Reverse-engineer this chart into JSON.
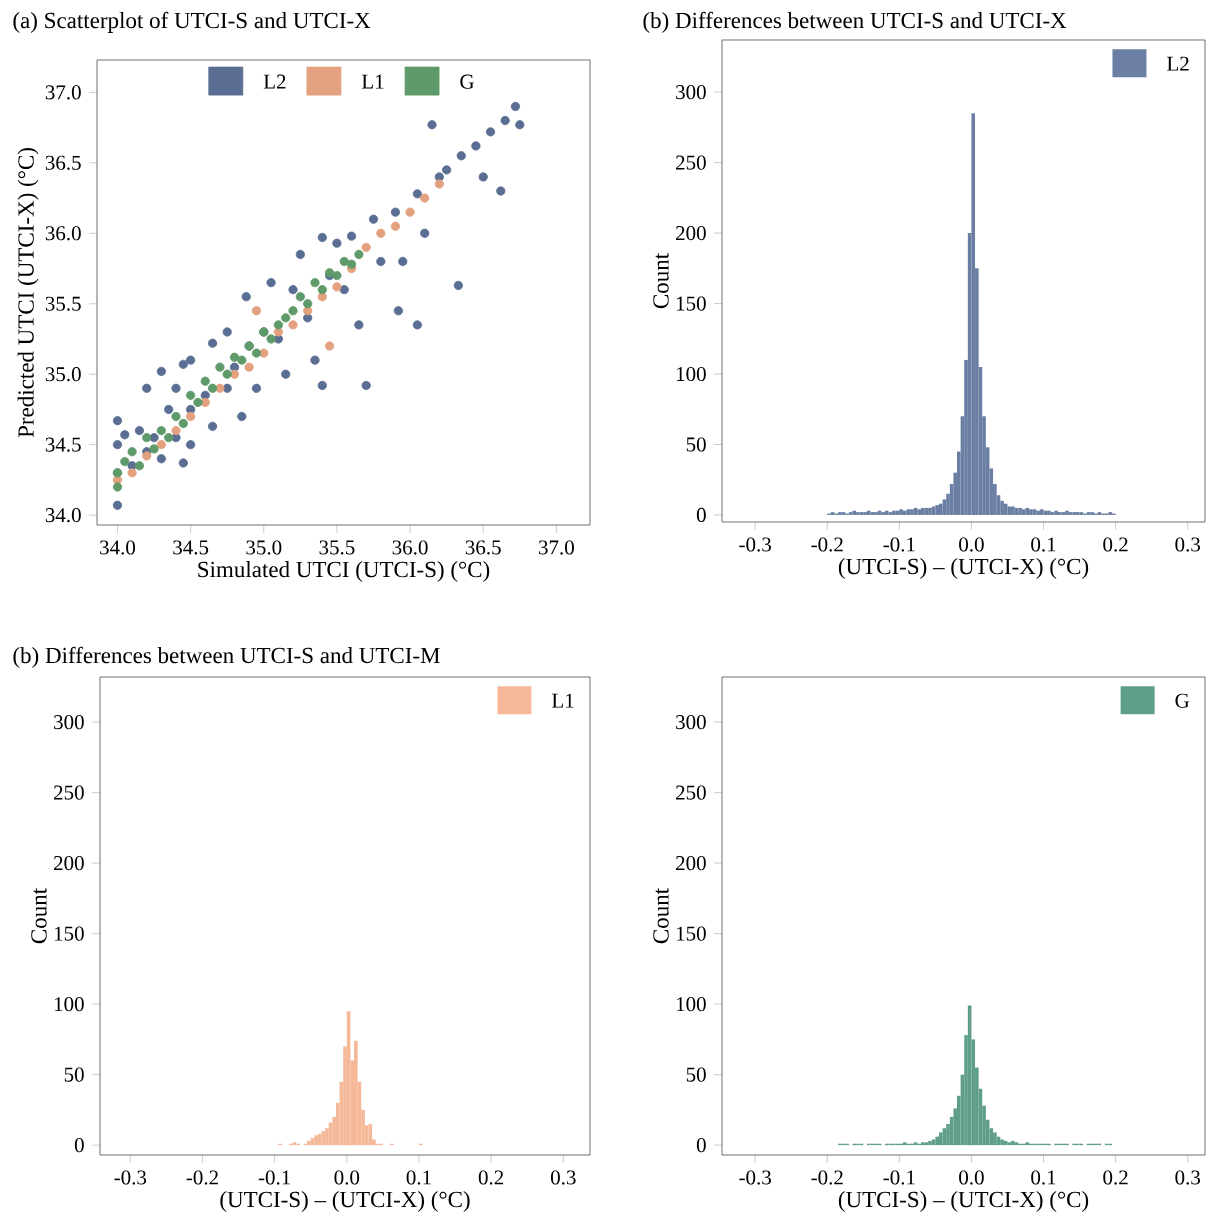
{
  "chart_data": [
    {
      "type": "scatter",
      "title": "(a) Scatterplot of UTCI-S and UTCI-X",
      "xlabel": "Simulated UTCI (UTCI-S) (°C)",
      "ylabel": "Predicted UTCI (UTCI-X) (°C)",
      "marker": "circle",
      "legend": "top",
      "xlim": [
        33.86,
        37.23
      ],
      "ylim": [
        33.93,
        37.23
      ],
      "xticks": [
        {
          "value": 34,
          "label": "34.0"
        },
        {
          "value": 34.5,
          "label": "34.5"
        },
        {
          "value": 35,
          "label": "35.0"
        },
        {
          "value": 35.5,
          "label": "35.5"
        },
        {
          "value": 36,
          "label": "36.0"
        },
        {
          "value": 36.5,
          "label": "36.5"
        },
        {
          "value": 37,
          "label": "37.0"
        }
      ],
      "yticks": [
        {
          "value": 34,
          "label": "34.0"
        },
        {
          "value": 34.5,
          "label": "34.5"
        },
        {
          "value": 35,
          "label": "35.0"
        },
        {
          "value": 35.5,
          "label": "35.5"
        },
        {
          "value": 36,
          "label": "36.0"
        },
        {
          "value": 36.5,
          "label": "36.5"
        },
        {
          "value": 37,
          "label": "37.0"
        }
      ],
      "series": [
        {
          "name": "L2",
          "color": "#5a6d92",
          "x": [
            34.0,
            34.0,
            34.0,
            34.0,
            34.05,
            34.1,
            34.15,
            34.2,
            34.2,
            34.25,
            34.3,
            34.3,
            34.35,
            34.4,
            34.4,
            34.45,
            34.45,
            34.5,
            34.5,
            34.5,
            34.6,
            34.65,
            34.65,
            34.75,
            34.75,
            34.8,
            34.85,
            34.88,
            34.9,
            34.95,
            35.0,
            35.05,
            35.1,
            35.15,
            35.2,
            35.25,
            35.3,
            35.35,
            35.4,
            35.4,
            35.45,
            35.5,
            35.55,
            35.6,
            35.65,
            35.7,
            35.75,
            35.8,
            35.9,
            35.92,
            35.95,
            36.05,
            36.05,
            36.1,
            36.15,
            36.2,
            36.25,
            36.33,
            36.35,
            36.45,
            36.5,
            36.55,
            36.62,
            36.65,
            36.72,
            36.75
          ],
          "values": [
            34.07,
            34.3,
            34.5,
            34.67,
            34.57,
            34.35,
            34.6,
            34.45,
            34.9,
            34.55,
            35.02,
            34.4,
            34.75,
            34.9,
            34.55,
            35.07,
            34.37,
            34.75,
            35.1,
            34.5,
            34.85,
            35.22,
            34.63,
            35.3,
            34.9,
            35.05,
            34.7,
            35.55,
            35.2,
            34.9,
            35.3,
            35.65,
            35.25,
            35.0,
            35.6,
            35.85,
            35.4,
            35.1,
            35.97,
            34.92,
            35.7,
            35.93,
            35.6,
            35.98,
            35.35,
            34.92,
            36.1,
            35.8,
            36.15,
            35.45,
            35.8,
            36.28,
            35.35,
            36.0,
            36.77,
            36.4,
            36.45,
            35.63,
            36.55,
            36.62,
            36.4,
            36.72,
            36.3,
            36.8,
            36.9,
            36.77
          ]
        },
        {
          "name": "L1",
          "color": "#e3a17f",
          "x": [
            34.0,
            34.1,
            34.2,
            34.3,
            34.4,
            34.5,
            34.6,
            34.7,
            34.8,
            34.9,
            35.0,
            35.1,
            35.2,
            35.3,
            35.4,
            35.5,
            35.6,
            35.7,
            35.8,
            35.9,
            36.0,
            36.1,
            36.2,
            35.45,
            34.95
          ],
          "values": [
            34.25,
            34.3,
            34.42,
            34.5,
            34.6,
            34.7,
            34.8,
            34.9,
            35.0,
            35.05,
            35.15,
            35.3,
            35.35,
            35.45,
            35.55,
            35.62,
            35.75,
            35.9,
            36.0,
            36.05,
            36.15,
            36.25,
            36.35,
            35.2,
            35.45
          ]
        },
        {
          "name": "G",
          "color": "#5f9a6a",
          "x": [
            34.0,
            34.0,
            34.05,
            34.1,
            34.15,
            34.2,
            34.25,
            34.3,
            34.35,
            34.4,
            34.45,
            34.5,
            34.55,
            34.6,
            34.65,
            34.7,
            34.75,
            34.8,
            34.85,
            34.9,
            34.95,
            35.0,
            35.05,
            35.1,
            35.15,
            35.2,
            35.25,
            35.3,
            35.35,
            35.4,
            35.45,
            35.5,
            35.55,
            35.6,
            35.65
          ],
          "values": [
            34.2,
            34.3,
            34.38,
            34.45,
            34.35,
            34.55,
            34.47,
            34.6,
            34.55,
            34.7,
            34.65,
            34.85,
            34.8,
            34.95,
            34.9,
            35.05,
            35.0,
            35.12,
            35.1,
            35.2,
            35.15,
            35.3,
            35.25,
            35.35,
            35.4,
            35.45,
            35.55,
            35.5,
            35.65,
            35.6,
            35.72,
            35.7,
            35.8,
            35.78,
            35.85
          ]
        }
      ]
    },
    {
      "type": "histogram",
      "title": "(b) Differences between UTCI-S and UTCI-X",
      "xlabel": "(UTCI-S) – (UTCI-X) (°C)",
      "ylabel": "Count",
      "legend": "top right",
      "xlim": [
        -0.346,
        0.324
      ],
      "ylim": [
        -5,
        337
      ],
      "xticks": [
        {
          "value": -0.3,
          "label": "-0.3"
        },
        {
          "value": -0.2,
          "label": "-0.2"
        },
        {
          "value": -0.1,
          "label": "-0.1"
        },
        {
          "value": 0,
          "label": "0.0"
        },
        {
          "value": 0.1,
          "label": "0.1"
        },
        {
          "value": 0.2,
          "label": "0.2"
        },
        {
          "value": 0.3,
          "label": "0.3"
        }
      ],
      "yticks": [
        0,
        50,
        100,
        150,
        200,
        250,
        300
      ],
      "bins": [
        -0.2,
        -0.195,
        -0.19,
        -0.185,
        -0.18,
        -0.175,
        -0.17,
        -0.165,
        -0.16,
        -0.155,
        -0.15,
        -0.145,
        -0.14,
        -0.135,
        -0.13,
        -0.125,
        -0.12,
        -0.115,
        -0.11,
        -0.105,
        -0.1,
        -0.095,
        -0.09,
        -0.085,
        -0.08,
        -0.075,
        -0.07,
        -0.065,
        -0.06,
        -0.055,
        -0.05,
        -0.045,
        -0.04,
        -0.035,
        -0.03,
        -0.025,
        -0.02,
        -0.015,
        -0.01,
        -0.005,
        0,
        0.005,
        0.01,
        0.015,
        0.02,
        0.025,
        0.03,
        0.035,
        0.04,
        0.045,
        0.05,
        0.055,
        0.06,
        0.065,
        0.07,
        0.075,
        0.08,
        0.085,
        0.09,
        0.095,
        0.1,
        0.105,
        0.11,
        0.115,
        0.12,
        0.125,
        0.13,
        0.135,
        0.14,
        0.145,
        0.15,
        0.155,
        0.16,
        0.165,
        0.17,
        0.175,
        0.18,
        0.185,
        0.19,
        0.195,
        0.2
      ],
      "series": [
        {
          "name": "L2",
          "color": "#6a7fa3",
          "values": [
            1,
            2,
            1,
            2,
            2,
            1,
            2,
            3,
            2,
            2,
            2,
            3,
            2,
            2,
            3,
            2,
            3,
            2,
            3,
            3,
            4,
            3,
            4,
            4,
            5,
            4,
            5,
            5,
            5,
            6,
            7,
            8,
            11,
            15,
            22,
            30,
            45,
            70,
            110,
            200,
            285,
            175,
            105,
            70,
            48,
            33,
            22,
            14,
            10,
            8,
            6,
            6,
            5,
            5,
            4,
            5,
            4,
            4,
            3,
            4,
            3,
            3,
            2,
            3,
            2,
            2,
            3,
            2,
            2,
            2,
            2,
            1,
            2,
            2,
            1,
            2,
            1,
            1,
            2,
            1
          ]
        }
      ]
    },
    {
      "type": "histogram",
      "title": "(b) Differences between UTCI-S and UTCI-M",
      "xlabel": "(UTCI-S) – (UTCI-X) (°C)",
      "ylabel": "Count",
      "legend": "top right",
      "xlim": [
        -0.342,
        0.337
      ],
      "ylim": [
        -7,
        332
      ],
      "xticks": [
        {
          "value": -0.3,
          "label": "-0.3"
        },
        {
          "value": -0.2,
          "label": "-0.2"
        },
        {
          "value": -0.1,
          "label": "-0.1"
        },
        {
          "value": 0,
          "label": "0.0"
        },
        {
          "value": 0.1,
          "label": "0.1"
        },
        {
          "value": 0.2,
          "label": "0.2"
        },
        {
          "value": 0.3,
          "label": "0.3"
        }
      ],
      "yticks": [
        0,
        50,
        100,
        150,
        200,
        250,
        300
      ],
      "bins": [
        -0.2,
        -0.195,
        -0.19,
        -0.185,
        -0.18,
        -0.175,
        -0.17,
        -0.165,
        -0.16,
        -0.155,
        -0.15,
        -0.145,
        -0.14,
        -0.135,
        -0.13,
        -0.125,
        -0.12,
        -0.115,
        -0.11,
        -0.105,
        -0.1,
        -0.095,
        -0.09,
        -0.085,
        -0.08,
        -0.075,
        -0.07,
        -0.065,
        -0.06,
        -0.055,
        -0.05,
        -0.045,
        -0.04,
        -0.035,
        -0.03,
        -0.025,
        -0.02,
        -0.015,
        -0.01,
        -0.005,
        0,
        0.005,
        0.01,
        0.015,
        0.02,
        0.025,
        0.03,
        0.035,
        0.04,
        0.045,
        0.05,
        0.055,
        0.06,
        0.065,
        0.07,
        0.075,
        0.08,
        0.085,
        0.09,
        0.095,
        0.1,
        0.105,
        0.11,
        0.115,
        0.12,
        0.125,
        0.13,
        0.135,
        0.14,
        0.145,
        0.15,
        0.155,
        0.16,
        0.165,
        0.17,
        0.175,
        0.18,
        0.185,
        0.19,
        0.195,
        0.2
      ],
      "series": [
        {
          "name": "L1",
          "color": "#f5b898",
          "values": [
            0,
            0,
            0,
            0,
            0,
            0,
            0,
            0,
            0,
            0,
            0,
            0,
            0,
            0,
            0,
            0,
            0,
            0,
            0,
            0,
            0,
            1,
            0,
            0,
            1,
            2,
            1,
            0,
            1,
            3,
            5,
            7,
            8,
            10,
            12,
            16,
            20,
            30,
            45,
            70,
            95,
            60,
            74,
            45,
            25,
            14,
            15,
            4,
            1,
            1,
            0,
            0,
            1,
            0,
            0,
            0,
            0,
            0,
            0,
            0,
            1,
            0,
            0,
            0,
            0,
            0,
            0,
            0,
            0,
            0,
            0,
            0,
            0,
            0,
            0,
            0,
            0,
            0,
            0,
            0
          ]
        }
      ]
    },
    {
      "type": "histogram",
      "xlabel": "(UTCI-S) – (UTCI-X) (°C)",
      "ylabel": "Count",
      "legend": "top right",
      "xlim": [
        -0.346,
        0.324
      ],
      "ylim": [
        -7,
        332
      ],
      "xticks": [
        {
          "value": -0.3,
          "label": "-0.3"
        },
        {
          "value": -0.2,
          "label": "-0.2"
        },
        {
          "value": -0.1,
          "label": "-0.1"
        },
        {
          "value": 0,
          "label": "0.0"
        },
        {
          "value": 0.1,
          "label": "0.1"
        },
        {
          "value": 0.2,
          "label": "0.2"
        },
        {
          "value": 0.3,
          "label": "0.3"
        }
      ],
      "yticks": [
        0,
        50,
        100,
        150,
        200,
        250,
        300
      ],
      "bins": [
        -0.2,
        -0.195,
        -0.19,
        -0.185,
        -0.18,
        -0.175,
        -0.17,
        -0.165,
        -0.16,
        -0.155,
        -0.15,
        -0.145,
        -0.14,
        -0.135,
        -0.13,
        -0.125,
        -0.12,
        -0.115,
        -0.11,
        -0.105,
        -0.1,
        -0.095,
        -0.09,
        -0.085,
        -0.08,
        -0.075,
        -0.07,
        -0.065,
        -0.06,
        -0.055,
        -0.05,
        -0.045,
        -0.04,
        -0.035,
        -0.03,
        -0.025,
        -0.02,
        -0.015,
        -0.01,
        -0.005,
        0,
        0.005,
        0.01,
        0.015,
        0.02,
        0.025,
        0.03,
        0.035,
        0.04,
        0.045,
        0.05,
        0.055,
        0.06,
        0.065,
        0.07,
        0.075,
        0.08,
        0.085,
        0.09,
        0.095,
        0.1,
        0.105,
        0.11,
        0.115,
        0.12,
        0.125,
        0.13,
        0.135,
        0.14,
        0.145,
        0.15,
        0.155,
        0.16,
        0.165,
        0.17,
        0.175,
        0.18,
        0.185,
        0.19,
        0.195,
        0.2
      ],
      "series": [
        {
          "name": "G",
          "color": "#5f9f87",
          "values": [
            0,
            0,
            0,
            1,
            1,
            1,
            0,
            1,
            1,
            1,
            0,
            1,
            1,
            1,
            1,
            0,
            1,
            1,
            1,
            1,
            1,
            2,
            1,
            1,
            2,
            1,
            2,
            2,
            3,
            4,
            6,
            9,
            12,
            15,
            20,
            26,
            35,
            50,
            78,
            99,
            75,
            55,
            40,
            28,
            18,
            12,
            9,
            6,
            4,
            3,
            2,
            3,
            2,
            1,
            1,
            2,
            1,
            1,
            1,
            1,
            1,
            1,
            0,
            1,
            1,
            1,
            1,
            0,
            1,
            1,
            1,
            0,
            1,
            1,
            1,
            1,
            0,
            1,
            1,
            0
          ]
        }
      ]
    }
  ]
}
